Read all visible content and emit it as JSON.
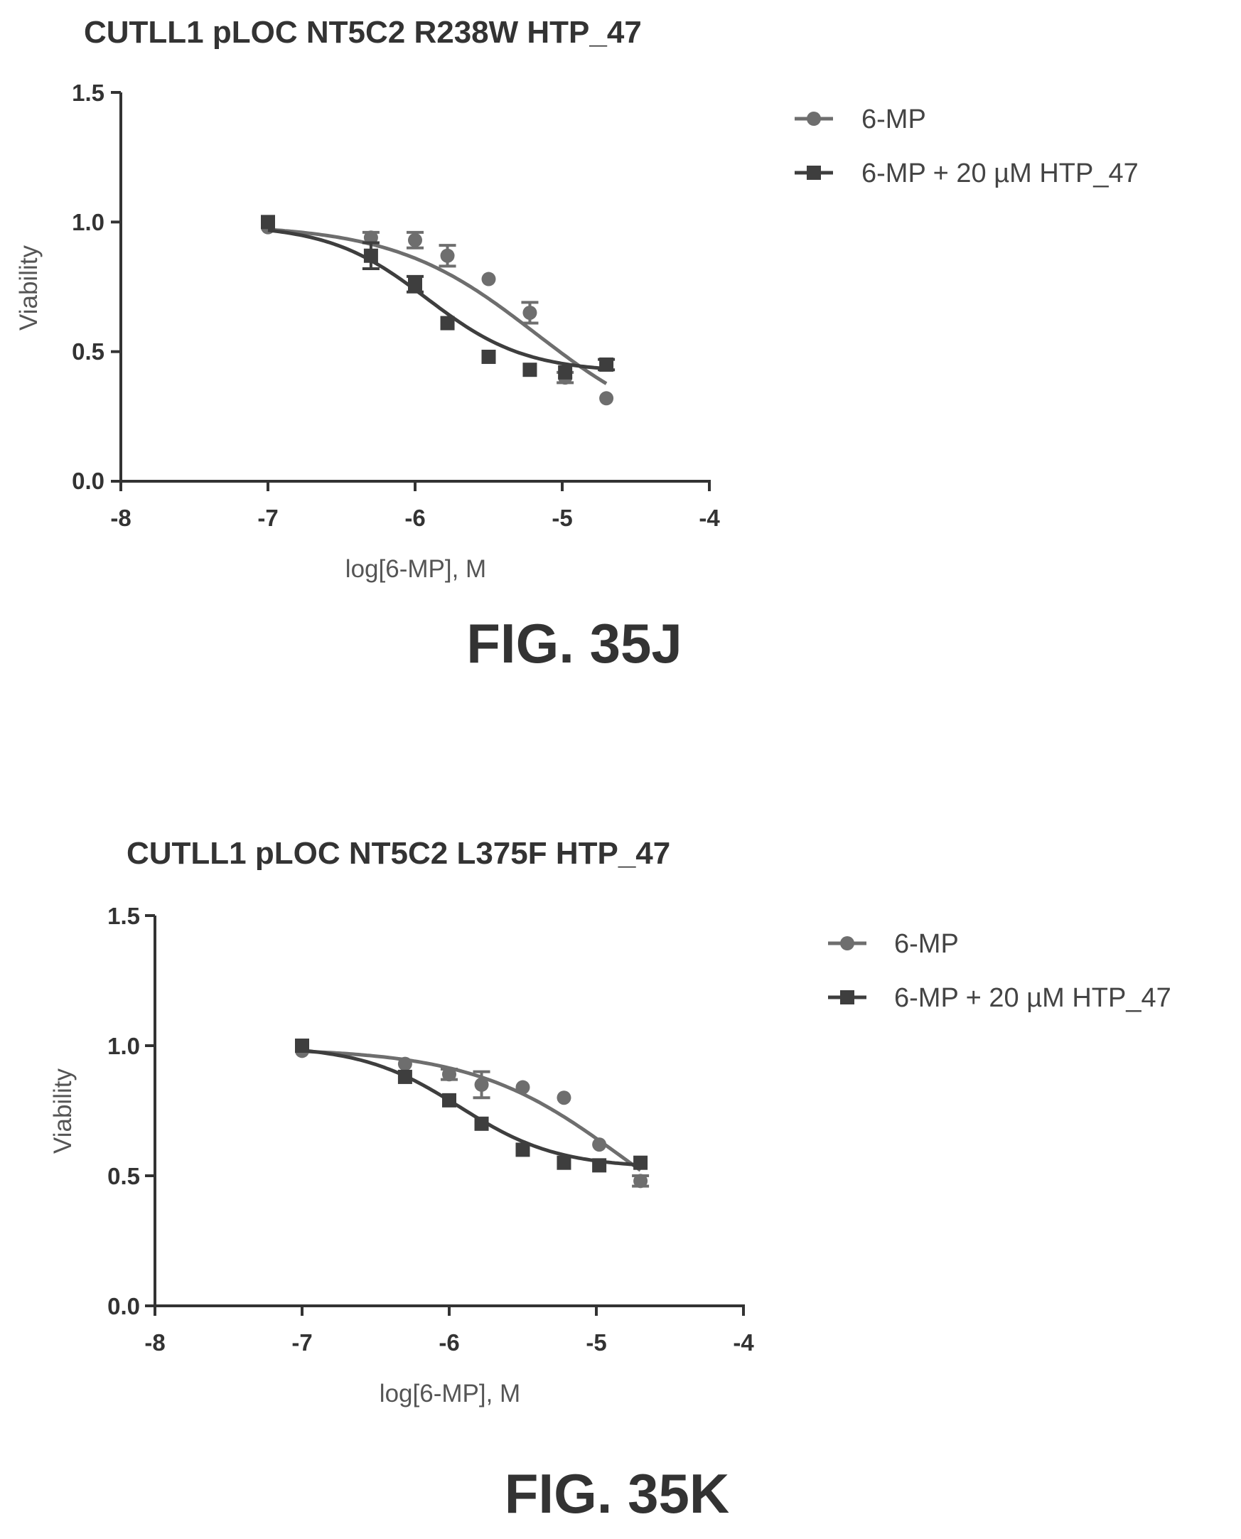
{
  "chart_data": [
    {
      "type": "scatter",
      "title": "CUTLL1 pLOC NT5C2 R238W HTP_47",
      "figure_label": "FIG. 35J",
      "xlabel": "log[6-MP], M",
      "ylabel": "Viability",
      "xlim": [
        -8,
        -4
      ],
      "ylim": [
        0,
        1.5
      ],
      "xticks": [
        -8,
        -7,
        -6,
        -5,
        -4
      ],
      "xtick_labels": [
        "-8",
        "-7",
        "-6",
        "-5",
        "-4"
      ],
      "yticks": [
        0,
        0.5,
        1.0,
        1.5
      ],
      "ytick_labels": [
        "0.0",
        "0.5",
        "1.0",
        "1.5"
      ],
      "legend_position": "top-right",
      "series": [
        {
          "name": "6-MP",
          "marker": "circle",
          "color": "#6e6e6e",
          "x": [
            -7.0,
            -6.3,
            -6.0,
            -5.78,
            -5.5,
            -5.22,
            -4.98,
            -4.7
          ],
          "y": [
            0.98,
            0.94,
            0.93,
            0.87,
            0.78,
            0.65,
            0.4,
            0.32
          ],
          "errors": [
            0.01,
            0.02,
            0.03,
            0.04,
            0.01,
            0.04,
            0.02,
            0.01
          ],
          "fit": {
            "top": 0.99,
            "bottom": 0.15,
            "logIC50": -5.18,
            "hill": 0.9
          }
        },
        {
          "name": "6-MP + 20 µM HTP_47",
          "marker": "square",
          "color": "#3e3e3e",
          "x": [
            -7.0,
            -6.3,
            -6.0,
            -5.78,
            -5.5,
            -5.22,
            -4.98,
            -4.7
          ],
          "y": [
            1.0,
            0.87,
            0.76,
            0.61,
            0.48,
            0.43,
            0.42,
            0.45
          ],
          "errors": [
            0.01,
            0.05,
            0.03,
            0.01,
            0.01,
            0.01,
            0.01,
            0.02
          ],
          "fit": {
            "top": 0.99,
            "bottom": 0.42,
            "logIC50": -5.92,
            "hill": 1.3
          }
        }
      ]
    },
    {
      "type": "scatter",
      "title": "CUTLL1 pLOC NT5C2 L375F HTP_47",
      "figure_label": "FIG. 35K",
      "xlabel": "log[6-MP], M",
      "ylabel": "Viability",
      "xlim": [
        -8,
        -4
      ],
      "ylim": [
        0,
        1.5
      ],
      "xticks": [
        -8,
        -7,
        -6,
        -5,
        -4
      ],
      "xtick_labels": [
        "-8",
        "-7",
        "-6",
        "-5",
        "-4"
      ],
      "yticks": [
        0,
        0.5,
        1.0,
        1.5
      ],
      "ytick_labels": [
        "0.0",
        "0.5",
        "1.0",
        "1.5"
      ],
      "legend_position": "top-right",
      "series": [
        {
          "name": "6-MP",
          "marker": "circle",
          "color": "#6e6e6e",
          "x": [
            -7.0,
            -6.3,
            -6.0,
            -5.78,
            -5.5,
            -5.22,
            -4.98,
            -4.7
          ],
          "y": [
            0.98,
            0.93,
            0.89,
            0.85,
            0.84,
            0.8,
            0.62,
            0.48
          ],
          "errors": [
            0.01,
            0.01,
            0.02,
            0.05,
            0.01,
            0.01,
            0.01,
            0.02
          ],
          "fit": {
            "top": 0.99,
            "bottom": 0.15,
            "logIC50": -4.82,
            "hill": 0.85
          }
        },
        {
          "name": "6-MP + 20 µM HTP_47",
          "marker": "square",
          "color": "#3e3e3e",
          "x": [
            -7.0,
            -6.3,
            -6.0,
            -5.78,
            -5.5,
            -5.22,
            -4.98,
            -4.7
          ],
          "y": [
            1.0,
            0.88,
            0.79,
            0.7,
            0.6,
            0.55,
            0.54,
            0.55
          ],
          "errors": [
            0.01,
            0.01,
            0.01,
            0.01,
            0.01,
            0.01,
            0.01,
            0.01
          ],
          "fit": {
            "top": 1.0,
            "bottom": 0.53,
            "logIC50": -5.93,
            "hill": 1.3
          }
        }
      ]
    }
  ]
}
